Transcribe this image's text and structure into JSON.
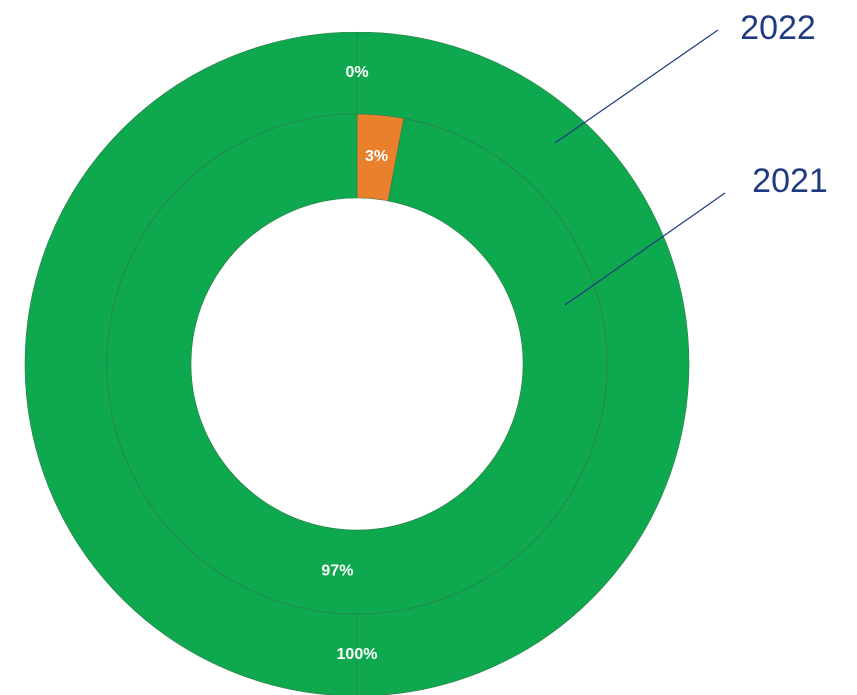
{
  "chart_data": {
    "type": "donut",
    "colors": [
      "#e8802c",
      "#0ea84e"
    ],
    "series": [
      {
        "name": "2022",
        "values": [
          0,
          100
        ],
        "value_labels": [
          "0%",
          "100%"
        ]
      },
      {
        "name": "2021",
        "values": [
          3,
          97
        ],
        "value_labels": [
          "3%",
          "97%"
        ]
      }
    ]
  }
}
